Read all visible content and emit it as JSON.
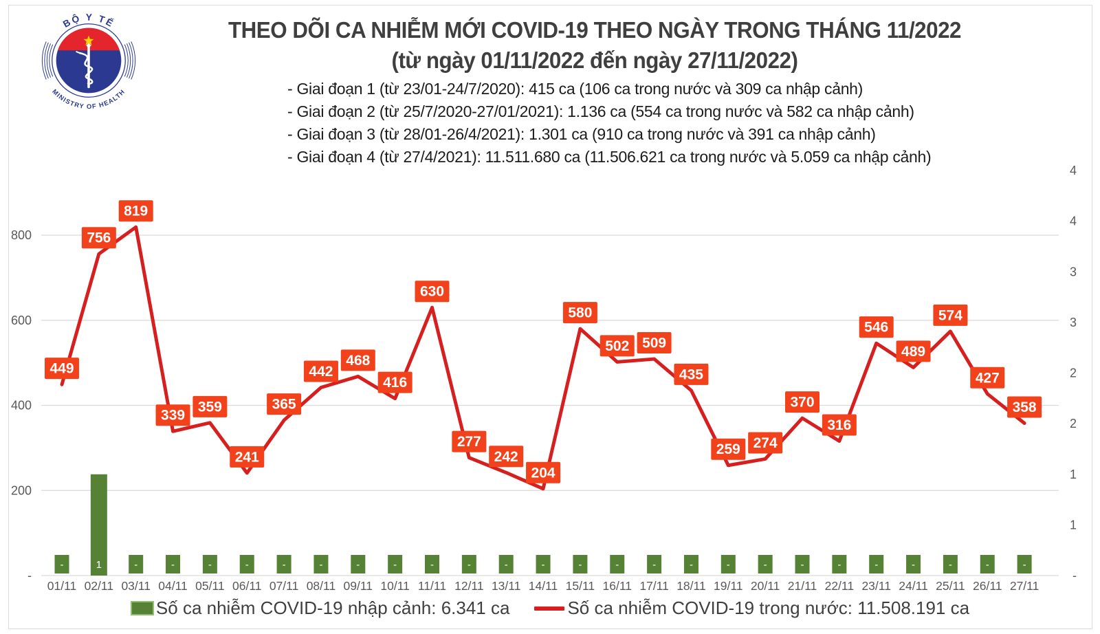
{
  "header": {
    "logo": {
      "top_text": "BỘ Y TẾ",
      "bottom_text": "MINISTRY OF HEALTH"
    },
    "title_line1": "THEO DÕI CA NHIỄM MỚI COVID-19 THEO NGÀY TRONG THÁNG 11/2022",
    "title_line2": "(từ ngày 01/11/2022 đến ngày 27/11/2022)",
    "phase_lines": [
      "- Giai đoạn 1 (từ 23/01-24/7/2020): 415 ca (106 ca trong nước và 309 ca nhập cảnh)",
      "- Giai đoạn 2 (từ 25/7/2020-27/01/2021): 1.136 ca (554 ca trong nước và 582 ca nhập cảnh)",
      "- Giai đoạn 3 (từ 28/01-26/4/2021): 1.301 ca (910 ca trong nước và 391 ca nhập cảnh)",
      "- Giai đoạn 4 (từ 27/4/2021): 11.511.680 ca (11.506.621 ca trong nước và 5.059 ca nhập cảnh)"
    ]
  },
  "chart_data": {
    "type": "line+bar combo",
    "categories": [
      "01/11",
      "02/11",
      "03/11",
      "04/11",
      "05/11",
      "06/11",
      "07/11",
      "08/11",
      "09/11",
      "10/11",
      "11/11",
      "12/11",
      "13/11",
      "14/11",
      "15/11",
      "16/11",
      "17/11",
      "18/11",
      "19/11",
      "20/11",
      "21/11",
      "22/11",
      "23/11",
      "24/11",
      "25/11",
      "26/11",
      "27/11"
    ],
    "series": [
      {
        "name": "Số ca nhiễm COVID-19 nhập cảnh",
        "type": "bar",
        "axis": "right",
        "values": [
          0,
          1,
          0,
          0,
          0,
          0,
          0,
          0,
          0,
          0,
          0,
          0,
          0,
          0,
          0,
          0,
          0,
          0,
          0,
          0,
          0,
          0,
          0,
          0,
          0,
          0,
          0
        ],
        "labels": [
          "-",
          "1",
          "-",
          "-",
          "-",
          "-",
          "-",
          "-",
          "-",
          "-",
          "-",
          "-",
          "-",
          "-",
          "-",
          "-",
          "-",
          "-",
          "-",
          "-",
          "-",
          "-",
          "-",
          "-",
          "-",
          "-",
          "-"
        ]
      },
      {
        "name": "Số ca nhiễm COVID-19 trong nước",
        "type": "line",
        "axis": "left",
        "values": [
          449,
          756,
          819,
          339,
          359,
          241,
          365,
          442,
          468,
          416,
          630,
          277,
          242,
          204,
          580,
          502,
          509,
          435,
          259,
          274,
          370,
          316,
          546,
          489,
          574,
          427,
          358
        ]
      }
    ],
    "left_axis": {
      "tick_values": [
        0,
        200,
        400,
        600,
        800
      ],
      "tick_labels": [
        "-",
        "200",
        "400",
        "600",
        "800"
      ],
      "range": [
        0,
        960
      ]
    },
    "right_axis": {
      "tick_labels_top_to_bottom": [
        "4",
        "4",
        "3",
        "3",
        "2",
        "2",
        "1",
        "1",
        "-"
      ],
      "range": [
        0,
        4
      ]
    },
    "gridlines": true,
    "legend_position": "bottom"
  },
  "legend": {
    "bar_label": "Số ca nhiễm COVID-19 nhập cảnh: 6.341 ca",
    "line_label": "Số ca nhiễm COVID-19 trong nước: 11.508.191 ca"
  },
  "colors": {
    "line_red": "#d62020",
    "data_label_box": "#f2421b",
    "bar_green": "#568235",
    "gridline": "#d9d9d9",
    "axis_text": "#595959",
    "logo_navy": "#2b3990",
    "logo_red": "#e4262c",
    "logo_star_yellow": "#ffd400"
  }
}
